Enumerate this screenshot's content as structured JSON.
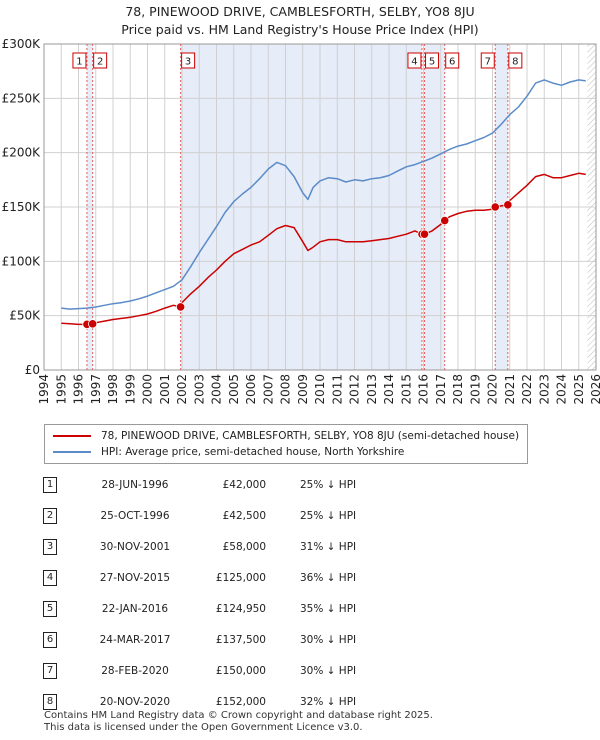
{
  "title_line1": "78, PINEWOOD DRIVE, CAMBLESFORTH, SELBY, YO8 8JU",
  "title_line2": "Price paid vs. HM Land Registry's House Price Index (HPI)",
  "colors": {
    "property": "#cc0000",
    "hpi": "#5b8cc8",
    "shade": "#e6ecf8",
    "grid": "#d0d0d0",
    "marker_line": "#e06060"
  },
  "legend": {
    "property_label": "78, PINEWOOD DRIVE, CAMBLESFORTH, SELBY, YO8 8JU (semi-detached house)",
    "hpi_label": "HPI: Average price, semi-detached house, North Yorkshire"
  },
  "sales": [
    {
      "num": "1",
      "date": "28-JUN-1996",
      "price": "£42,000",
      "hpi_diff": "25% ↓ HPI"
    },
    {
      "num": "2",
      "date": "25-OCT-1996",
      "price": "£42,500",
      "hpi_diff": "25% ↓ HPI"
    },
    {
      "num": "3",
      "date": "30-NOV-2001",
      "price": "£58,000",
      "hpi_diff": "31% ↓ HPI"
    },
    {
      "num": "4",
      "date": "27-NOV-2015",
      "price": "£125,000",
      "hpi_diff": "36% ↓ HPI"
    },
    {
      "num": "5",
      "date": "22-JAN-2016",
      "price": "£124,950",
      "hpi_diff": "35% ↓ HPI"
    },
    {
      "num": "6",
      "date": "24-MAR-2017",
      "price": "£137,500",
      "hpi_diff": "30% ↓ HPI"
    },
    {
      "num": "7",
      "date": "28-FEB-2020",
      "price": "£150,000",
      "hpi_diff": "30% ↓ HPI"
    },
    {
      "num": "8",
      "date": "20-NOV-2020",
      "price": "£152,000",
      "hpi_diff": "32% ↓ HPI"
    }
  ],
  "footer_line1": "Contains HM Land Registry data © Crown copyright and database right 2025.",
  "footer_line2": "This data is licensed under the Open Government Licence v3.0.",
  "chart_data": {
    "type": "line",
    "title": "78, PINEWOOD DRIVE, CAMBLESFORTH, SELBY, YO8 8JU",
    "subtitle": "Price paid vs. HM Land Registry's House Price Index (HPI)",
    "xlabel": "",
    "ylabel": "",
    "xlim": [
      1994,
      2026
    ],
    "ylim": [
      0,
      300000
    ],
    "x_ticks": [
      1994,
      1995,
      1996,
      1997,
      1998,
      1999,
      2000,
      2001,
      2002,
      2003,
      2004,
      2005,
      2006,
      2007,
      2008,
      2009,
      2010,
      2011,
      2012,
      2013,
      2014,
      2015,
      2016,
      2017,
      2018,
      2019,
      2020,
      2021,
      2022,
      2023,
      2024,
      2025,
      2026
    ],
    "y_ticks": [
      {
        "value": 0,
        "label": "£0"
      },
      {
        "value": 50000,
        "label": "£50K"
      },
      {
        "value": 100000,
        "label": "£100K"
      },
      {
        "value": 150000,
        "label": "£150K"
      },
      {
        "value": 200000,
        "label": "£200K"
      },
      {
        "value": 250000,
        "label": "£250K"
      },
      {
        "value": 300000,
        "label": "£300K"
      }
    ],
    "grid": true,
    "legend_position": "below",
    "shaded_ranges": [
      [
        1996.49,
        1996.82
      ],
      [
        2001.92,
        2015.91
      ],
      [
        2016.06,
        2017.23
      ],
      [
        2020.16,
        2020.89
      ]
    ],
    "hatched_after": 2025.5,
    "series": [
      {
        "name": "HPI: Average price, semi-detached house, North Yorkshire",
        "x": [
          1995.0,
          1995.5,
          1996.0,
          1996.5,
          1997.0,
          1997.5,
          1998.0,
          1998.5,
          1999.0,
          1999.5,
          2000.0,
          2000.5,
          2001.0,
          2001.5,
          2002.0,
          2002.5,
          2003.0,
          2003.5,
          2004.0,
          2004.5,
          2005.0,
          2005.5,
          2006.0,
          2006.5,
          2007.0,
          2007.5,
          2008.0,
          2008.5,
          2009.0,
          2009.3,
          2009.6,
          2010.0,
          2010.5,
          2011.0,
          2011.5,
          2012.0,
          2012.5,
          2013.0,
          2013.5,
          2014.0,
          2014.5,
          2015.0,
          2015.5,
          2016.0,
          2016.5,
          2017.0,
          2017.5,
          2018.0,
          2018.5,
          2019.0,
          2019.5,
          2020.0,
          2020.5,
          2021.0,
          2021.5,
          2022.0,
          2022.5,
          2023.0,
          2023.5,
          2024.0,
          2024.5,
          2025.0,
          2025.4
        ],
        "values": [
          57000,
          56000,
          56500,
          57000,
          58000,
          59500,
          61000,
          62000,
          63500,
          65500,
          68000,
          71000,
          74000,
          77000,
          83000,
          95000,
          108000,
          120000,
          132000,
          145000,
          155000,
          162000,
          168000,
          176000,
          185000,
          191000,
          188000,
          178000,
          163000,
          157000,
          168000,
          174000,
          177000,
          176000,
          173000,
          175000,
          174000,
          176000,
          177000,
          179000,
          183000,
          187000,
          189000,
          192000,
          195000,
          199000,
          203000,
          206000,
          208000,
          211000,
          214000,
          218000,
          226000,
          235000,
          242000,
          252000,
          264000,
          267000,
          264000,
          262000,
          265000,
          267000,
          266000
        ]
      },
      {
        "name": "78, PINEWOOD DRIVE, CAMBLESFORTH, SELBY, YO8 8JU (semi-detached house)",
        "x": [
          1995.0,
          1995.5,
          1996.0,
          1996.49,
          1996.82,
          1997.0,
          1997.5,
          1998.0,
          1998.5,
          1999.0,
          1999.5,
          2000.0,
          2000.5,
          2001.0,
          2001.5,
          2001.92,
          2002.0,
          2002.5,
          2003.0,
          2003.5,
          2004.0,
          2004.5,
          2005.0,
          2005.5,
          2006.0,
          2006.5,
          2007.0,
          2007.5,
          2008.0,
          2008.5,
          2009.0,
          2009.3,
          2009.6,
          2010.0,
          2010.5,
          2011.0,
          2011.5,
          2012.0,
          2012.5,
          2013.0,
          2013.5,
          2014.0,
          2014.5,
          2015.0,
          2015.5,
          2015.91,
          2016.06,
          2016.5,
          2017.0,
          2017.23,
          2017.5,
          2018.0,
          2018.5,
          2019.0,
          2019.5,
          2020.0,
          2020.16,
          2020.5,
          2020.89,
          2021.0,
          2021.5,
          2022.0,
          2022.5,
          2023.0,
          2023.5,
          2024.0,
          2024.5,
          2025.0,
          2025.4
        ],
        "values": [
          43000,
          42500,
          42000,
          42000,
          42500,
          43500,
          45000,
          46500,
          47500,
          48500,
          50000,
          51500,
          54000,
          57000,
          59500,
          58000,
          62000,
          70000,
          77000,
          85000,
          92000,
          100000,
          107000,
          111000,
          115000,
          118000,
          124000,
          130000,
          133000,
          131000,
          118000,
          110000,
          113000,
          118000,
          120000,
          120000,
          118000,
          118000,
          118000,
          119000,
          120000,
          121000,
          123000,
          125000,
          128000,
          125000,
          124950,
          128000,
          134000,
          137500,
          141000,
          144000,
          146000,
          147000,
          147000,
          148000,
          150000,
          151000,
          152000,
          156000,
          163000,
          170000,
          178000,
          180000,
          177000,
          177000,
          179000,
          181000,
          180000
        ]
      }
    ],
    "sale_markers": [
      {
        "num": "1",
        "x": 1996.49,
        "value": 42000
      },
      {
        "num": "2",
        "x": 1996.82,
        "value": 42500
      },
      {
        "num": "3",
        "x": 2001.92,
        "value": 58000
      },
      {
        "num": "4",
        "x": 2015.91,
        "value": 125000
      },
      {
        "num": "5",
        "x": 2016.06,
        "value": 124950
      },
      {
        "num": "6",
        "x": 2017.23,
        "value": 137500
      },
      {
        "num": "7",
        "x": 2020.16,
        "value": 150000
      },
      {
        "num": "8",
        "x": 2020.89,
        "value": 152000
      }
    ]
  }
}
